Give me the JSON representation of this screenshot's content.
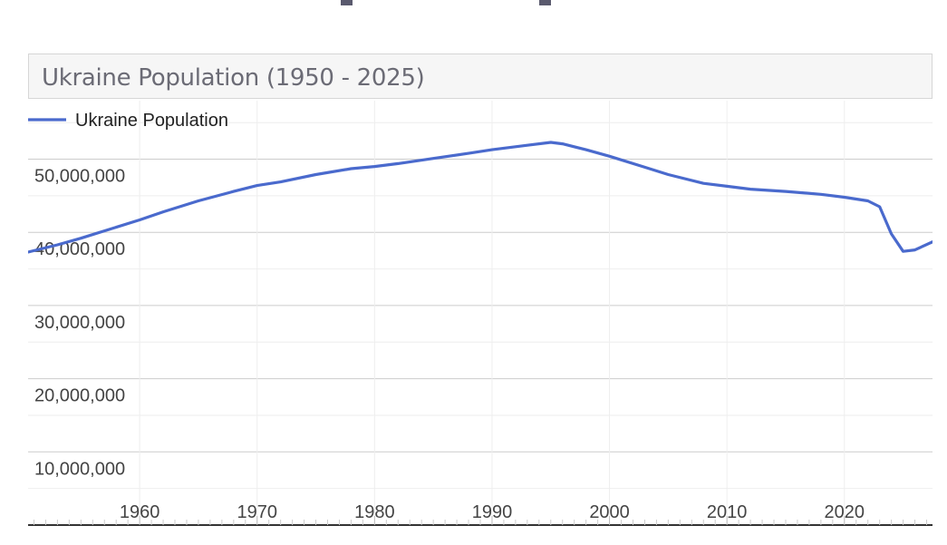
{
  "chart_data": {
    "type": "line",
    "title": "Ukraine Population (1950 - 2025)",
    "legend": {
      "label": "Ukraine Population",
      "placement": "top-left"
    },
    "xlabel": "",
    "ylabel": "",
    "xlim": [
      1950.5,
      2027.5
    ],
    "ylim": [
      0,
      58000000
    ],
    "x_ticks": [
      1960,
      1970,
      1980,
      1990,
      2000,
      2010,
      2020
    ],
    "x_tick_labels": [
      "1960",
      "1970",
      "1980",
      "1990",
      "2000",
      "2010",
      "2020"
    ],
    "y_ticks": [
      10000000,
      20000000,
      30000000,
      40000000,
      50000000
    ],
    "y_tick_labels": [
      "10,000,000",
      "20,000,000",
      "30,000,000",
      "40,000,000",
      "50,000,000"
    ],
    "grid": true,
    "series": [
      {
        "name": "Ukraine Population",
        "color": "#4a6acd",
        "x": [
          1950.5,
          1953,
          1955,
          1957,
          1960,
          1962,
          1965,
          1968,
          1970,
          1972,
          1975,
          1978,
          1980,
          1982,
          1985,
          1988,
          1990,
          1992,
          1993,
          1995,
          1996,
          1998,
          2000,
          2003,
          2005,
          2008,
          2010,
          2012,
          2015,
          2018,
          2020,
          2022,
          2023,
          2024,
          2025,
          2026,
          2027.5
        ],
        "y": [
          37300000,
          38300000,
          39200000,
          40200000,
          41700000,
          42800000,
          44300000,
          45600000,
          46400000,
          46900000,
          47900000,
          48700000,
          49000000,
          49400000,
          50100000,
          50800000,
          51300000,
          51700000,
          51900000,
          52300000,
          52100000,
          51300000,
          50400000,
          48900000,
          47900000,
          46700000,
          46300000,
          45900000,
          45600000,
          45200000,
          44800000,
          44300000,
          43500000,
          39800000,
          37400000,
          37600000,
          38700000
        ]
      }
    ]
  }
}
